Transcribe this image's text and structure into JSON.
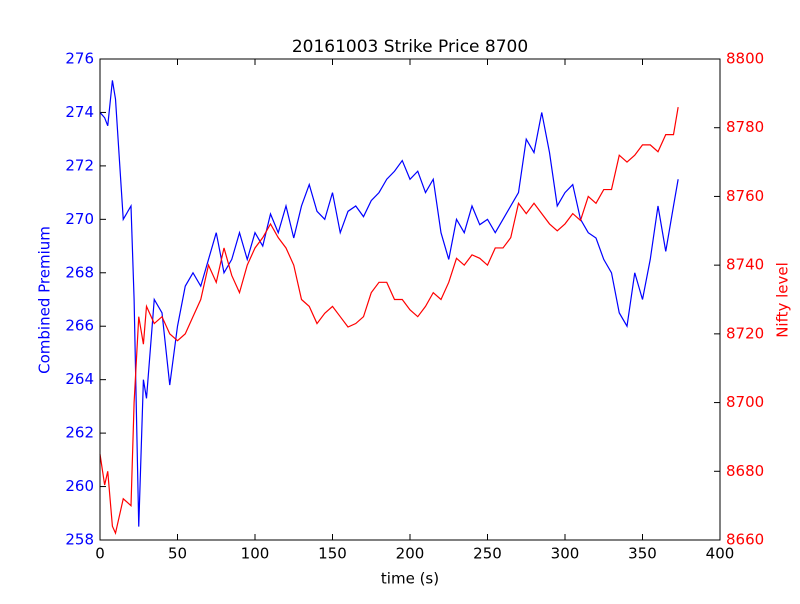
{
  "chart_data": {
    "type": "line",
    "title": "20161003 Strike Price 8700",
    "xlabel": "time (s)",
    "ylabel": "Combined Premium",
    "y2label": "Nifty level",
    "x": [
      0,
      3,
      5,
      8,
      10,
      15,
      20,
      22,
      25,
      28,
      30,
      35,
      40,
      45,
      50,
      55,
      60,
      65,
      70,
      75,
      80,
      85,
      90,
      95,
      100,
      105,
      110,
      115,
      120,
      125,
      130,
      135,
      140,
      145,
      150,
      155,
      160,
      165,
      170,
      175,
      180,
      185,
      190,
      195,
      200,
      205,
      210,
      215,
      220,
      225,
      230,
      235,
      240,
      245,
      250,
      255,
      260,
      265,
      270,
      275,
      280,
      285,
      290,
      295,
      300,
      305,
      310,
      315,
      320,
      325,
      330,
      335,
      340,
      345,
      350,
      355,
      360,
      365,
      370,
      373
    ],
    "series": [
      {
        "color": "#0000ff",
        "axis": "y",
        "values": [
          274.0,
          273.8,
          273.5,
          275.2,
          274.5,
          270,
          270.5,
          267,
          258.5,
          264,
          263.3,
          267,
          266.5,
          263.8,
          266,
          267.5,
          268,
          267.5,
          268.5,
          269.5,
          268,
          268.5,
          269.5,
          268.5,
          269.5,
          269,
          270.2,
          269.5,
          270.5,
          269.3,
          270.5,
          271.3,
          270.3,
          270,
          271,
          269.5,
          270.3,
          270.5,
          270.1,
          270.7,
          271,
          271.5,
          271.8,
          272.2,
          271.5,
          271.8,
          271,
          271.5,
          269.5,
          268.5,
          270,
          269.5,
          270.5,
          269.8,
          270,
          269.5,
          270,
          270.5,
          271,
          273,
          272.5,
          274,
          272.5,
          270.5,
          271,
          271.3,
          270,
          269.5,
          269.3,
          268.5,
          268,
          266.5,
          266,
          268,
          267,
          268.5,
          270.5,
          268.8,
          270.5,
          271.5
        ]
      },
      {
        "color": "#ff0000",
        "axis": "y2",
        "values": [
          8685,
          8676,
          8680,
          8664,
          8662,
          8672,
          8670,
          8700,
          8725,
          8717,
          8728,
          8723,
          8725,
          8720,
          8718,
          8720,
          8725,
          8730,
          8740,
          8735,
          8745,
          8737,
          8732,
          8740,
          8745,
          8748,
          8752,
          8748,
          8745,
          8740,
          8730,
          8728,
          8723,
          8726,
          8728,
          8725,
          8722,
          8723,
          8725,
          8732,
          8735,
          8735,
          8730,
          8730,
          8727,
          8725,
          8728,
          8732,
          8730,
          8735,
          8742,
          8740,
          8743,
          8742,
          8740,
          8745,
          8745,
          8748,
          8758,
          8755,
          8758,
          8755,
          8752,
          8750,
          8752,
          8755,
          8753,
          8760,
          8758,
          8762,
          8762,
          8772,
          8770,
          8772,
          8775,
          8775,
          8773,
          8778,
          8778,
          8786
        ]
      }
    ],
    "xlim": [
      0,
      400
    ],
    "xticks": [
      0,
      50,
      100,
      150,
      200,
      250,
      300,
      350,
      400
    ],
    "ylim": [
      258,
      276
    ],
    "yticks": [
      258,
      260,
      262,
      264,
      266,
      268,
      270,
      272,
      274,
      276
    ],
    "y2lim": [
      8660,
      8800
    ],
    "y2ticks": [
      8660,
      8680,
      8700,
      8720,
      8740,
      8760,
      8780,
      8800
    ]
  }
}
